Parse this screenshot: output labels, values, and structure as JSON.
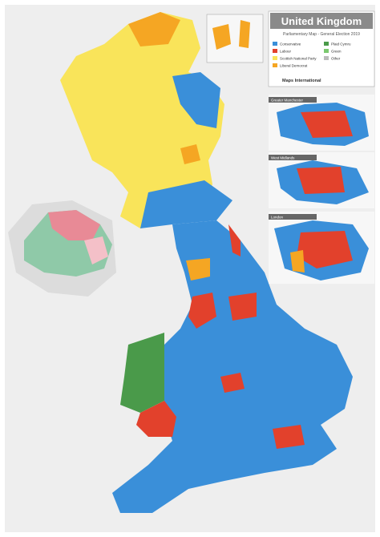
{
  "header": {
    "title": "United Kingdom",
    "subtitle": "Parliamentary Map - General Election 2019",
    "publisher": "Maps International"
  },
  "legend": {
    "items": [
      "Conservative",
      "Labour",
      "Scottish National Party",
      "Liberal Democrat",
      "Plaid Cymru",
      "Green",
      "Other"
    ]
  },
  "insets": [
    "Greater Manchester",
    "West Midlands",
    "London"
  ]
}
